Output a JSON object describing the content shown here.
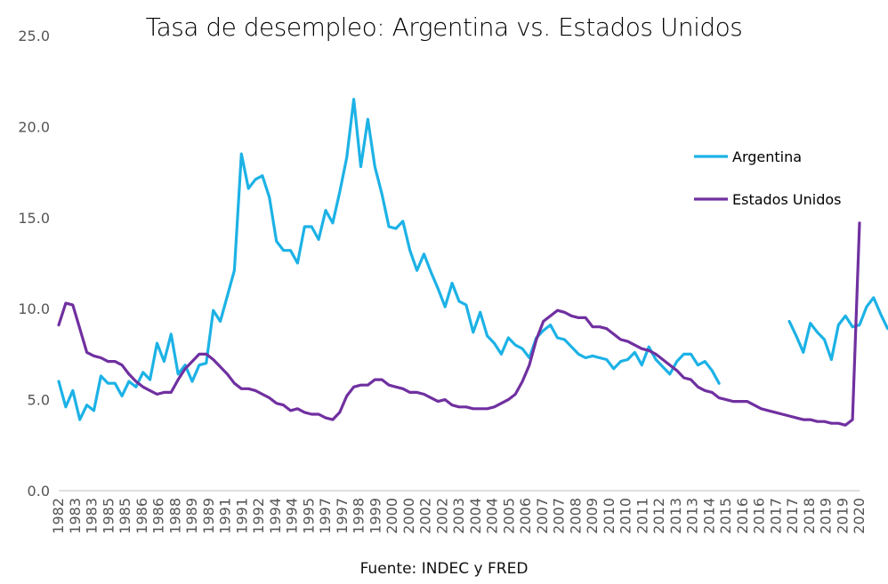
{
  "chart_data": {
    "type": "line",
    "title": "Tasa de desempleo: Argentina vs. Estados Unidos",
    "source": "Fuente: INDEC y FRED",
    "ylim": [
      0,
      25
    ],
    "y_ticks": [
      "0.0",
      "5.0",
      "10.0",
      "15.0",
      "20.0",
      "25.0"
    ],
    "x_ticks": [
      "1982",
      "1983",
      "1983",
      "1985",
      "1985",
      "1986",
      "1986",
      "1988",
      "1989",
      "1989",
      "1991",
      "1991",
      "1992",
      "1994",
      "1994",
      "1995",
      "1997",
      "1997",
      "1998",
      "1999",
      "2000",
      "2000",
      "2002",
      "2002",
      "2003",
      "2004",
      "2004",
      "2005",
      "2006",
      "2007",
      "2007",
      "2008",
      "2009",
      "2010",
      "2010",
      "2011",
      "2012",
      "2013",
      "2013",
      "2014",
      "2015",
      "2016",
      "2016",
      "2017",
      "2017",
      "2018",
      "2019",
      "2019",
      "2020"
    ],
    "x_range": [
      0,
      114
    ],
    "grid": false,
    "legend_position": "right",
    "series": [
      {
        "name": "Argentina",
        "color": "#1CB2E6",
        "values": [
          6.0,
          4.6,
          5.5,
          3.9,
          4.7,
          4.4,
          6.3,
          5.9,
          5.9,
          5.2,
          6.0,
          5.7,
          6.5,
          6.1,
          8.1,
          7.1,
          8.6,
          6.4,
          6.9,
          6.0,
          6.9,
          7.0,
          9.9,
          9.3,
          10.7,
          12.1,
          18.5,
          16.6,
          17.1,
          17.3,
          16.1,
          13.7,
          13.2,
          13.2,
          12.5,
          14.5,
          14.5,
          13.8,
          15.4,
          14.7,
          16.4,
          18.3,
          21.5,
          17.8,
          20.4,
          17.8,
          16.3,
          14.5,
          14.4,
          14.8,
          13.2,
          12.1,
          13.0,
          12.0,
          11.1,
          10.1,
          11.4,
          10.4,
          10.2,
          8.7,
          9.8,
          8.5,
          8.1,
          7.5,
          8.4,
          8.0,
          7.8,
          7.3,
          8.4,
          8.8,
          9.1,
          8.4,
          8.3,
          7.9,
          7.5,
          7.3,
          7.4,
          7.3,
          7.2,
          6.7,
          7.1,
          7.2,
          7.6,
          6.9,
          7.9,
          7.2,
          6.8,
          6.4,
          7.1,
          7.5,
          7.5,
          6.9,
          7.1,
          6.6,
          5.9,
          null,
          null,
          null,
          null,
          null,
          null,
          null,
          null,
          null,
          9.3,
          8.5,
          7.6,
          9.2,
          8.7,
          8.3,
          7.2,
          9.1,
          9.6,
          9.0,
          9.1,
          10.1,
          10.6,
          9.7,
          8.9
        ],
        "values_note": null
      },
      {
        "name": "Estados Unidos",
        "color": "#7030A0",
        "values": [
          9.1,
          10.3,
          10.2,
          8.9,
          7.6,
          7.4,
          7.3,
          7.1,
          7.1,
          6.9,
          6.4,
          6.0,
          5.7,
          5.5,
          5.3,
          5.4,
          5.4,
          6.1,
          6.7,
          7.1,
          7.5,
          7.5,
          7.2,
          6.8,
          6.4,
          5.9,
          5.6,
          5.6,
          5.5,
          5.3,
          5.1,
          4.8,
          4.7,
          4.4,
          4.5,
          4.3,
          4.2,
          4.2,
          4.0,
          3.9,
          4.3,
          5.2,
          5.7,
          5.8,
          5.8,
          6.1,
          6.1,
          5.8,
          5.7,
          5.6,
          5.4,
          5.4,
          5.3,
          5.1,
          4.9,
          5.0,
          4.7,
          4.6,
          4.6,
          4.5,
          4.5,
          4.5,
          4.6,
          4.8,
          5.0,
          5.3,
          6.0,
          6.9,
          8.3,
          9.3,
          9.6,
          9.9,
          9.8,
          9.6,
          9.5,
          9.5,
          9.0,
          9.0,
          8.9,
          8.6,
          8.3,
          8.2,
          8.0,
          7.8,
          7.7,
          7.5,
          7.2,
          6.9,
          6.6,
          6.2,
          6.1,
          5.7,
          5.5,
          5.4,
          5.1,
          5.0,
          4.9,
          4.9,
          4.9,
          4.7,
          4.5,
          4.4,
          4.3,
          4.2,
          4.1,
          4.0,
          3.9,
          3.9,
          3.8,
          3.8,
          3.7,
          3.7,
          3.6,
          3.9,
          14.7
        ]
      }
    ]
  },
  "icons": {
    "legend_swatch": "line-swatch"
  }
}
